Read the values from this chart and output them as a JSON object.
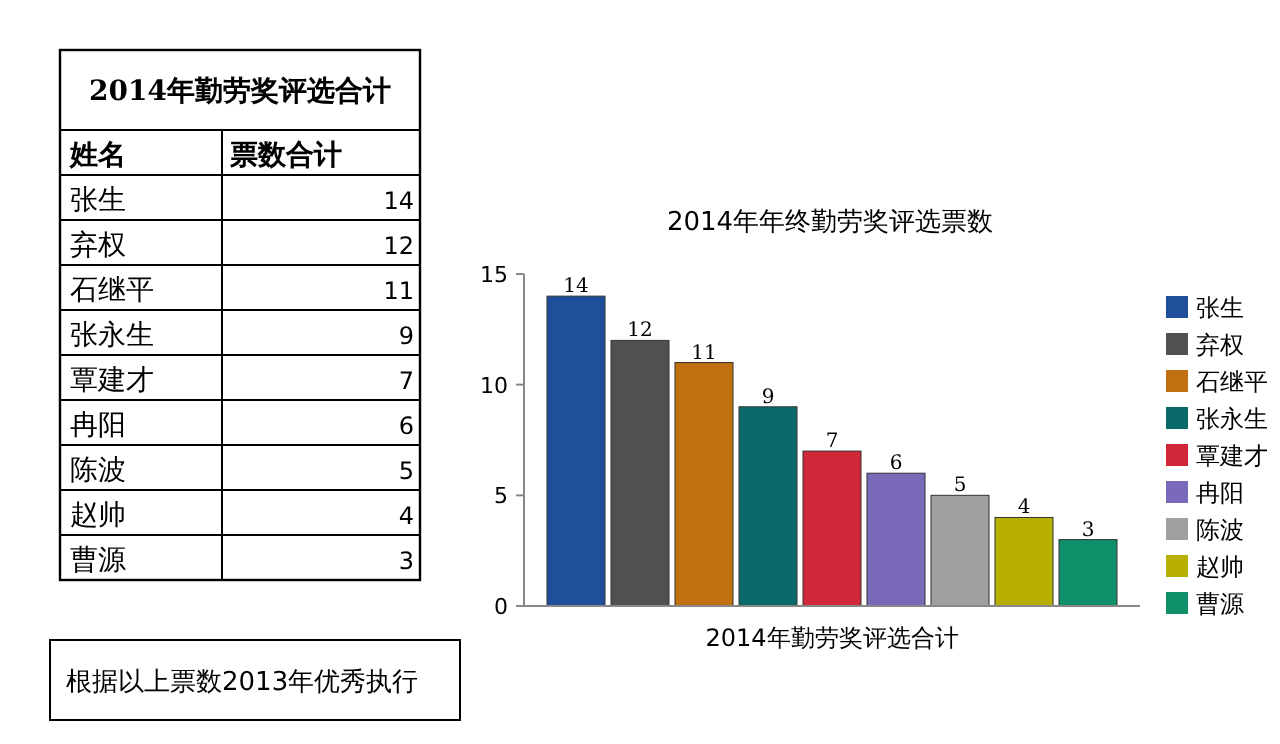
{
  "chart_data": [
    {
      "type": "other",
      "title": "2014年勤劳奖评选合计",
      "categories": [
        "张生",
        "弃权",
        "石继平",
        "张永生",
        "覃建才",
        "冉阳",
        "陈波",
        "赵帅",
        "曹源"
      ],
      "values": [
        14,
        12,
        11,
        9,
        7,
        6,
        5,
        4,
        3
      ],
      "data_labels": true,
      "annotations": [
        "姓名",
        "票数合计",
        "根据以上票数2013年优秀执行"
      ]
    },
    {
      "type": "bar",
      "title": "2014年年终勤劳奖评选票数",
      "categories": [
        "2014年勤劳奖评选合计"
      ],
      "series": [
        {
          "name": "张生",
          "color": "#1f4e9a",
          "values": [
            14
          ]
        },
        {
          "name": "弃权",
          "color": "#505050",
          "values": [
            12
          ]
        },
        {
          "name": "石继平",
          "color": "#c07010",
          "values": [
            11
          ]
        },
        {
          "name": "张永生",
          "color": "#0a6a6a",
          "values": [
            9
          ]
        },
        {
          "name": "覃建才",
          "color": "#d02838",
          "values": [
            7
          ]
        },
        {
          "name": "冉阳",
          "color": "#7a68b8",
          "values": [
            6
          ]
        },
        {
          "name": "陈波",
          "color": "#a0a0a0",
          "values": [
            5
          ]
        },
        {
          "name": "赵帅",
          "color": "#b8b000",
          "values": [
            4
          ]
        },
        {
          "name": "曹源",
          "color": "#10906a",
          "values": [
            3
          ]
        }
      ],
      "ylim": [
        0,
        15
      ],
      "yticks": [
        0,
        5,
        10,
        15
      ],
      "legend": "right",
      "data_labels": true
    }
  ]
}
